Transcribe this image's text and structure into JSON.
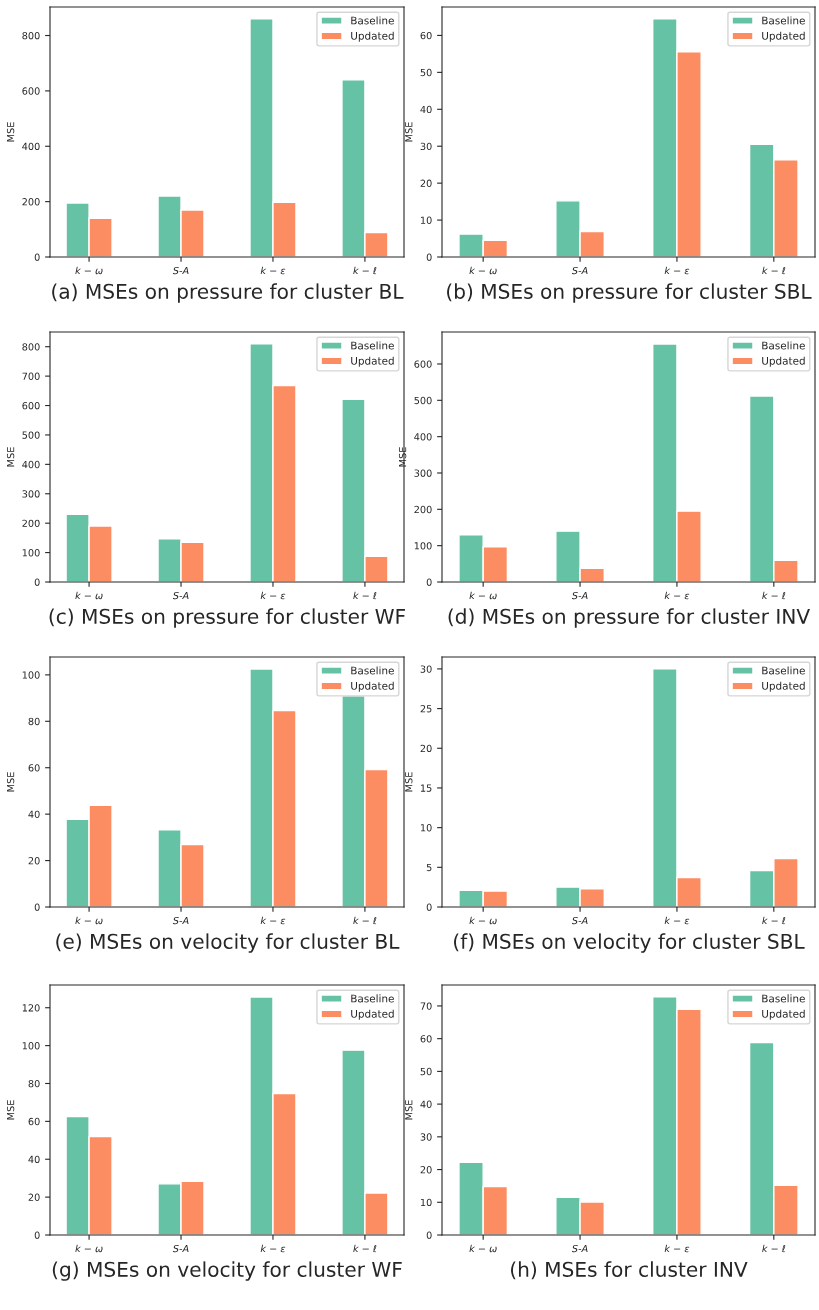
{
  "chart_data": [
    {
      "type": "bar",
      "title": "(a) MSEs on pressure for cluster BL",
      "ylabel": "MSE",
      "categories": [
        "k − ω",
        "S-A",
        "k − ε",
        "k − ℓ"
      ],
      "ylim": [
        0,
        903
      ],
      "yticks": [
        0,
        200,
        400,
        600,
        800
      ],
      "legend": "top right",
      "series": [
        {
          "name": "Baseline",
          "color": "#66c2a5",
          "values": [
            195,
            220,
            860,
            640
          ]
        },
        {
          "name": "Updated",
          "color": "#fc8d62",
          "values": [
            140,
            170,
            198,
            88
          ]
        }
      ]
    },
    {
      "type": "bar",
      "title": "(b) MSEs on pressure for cluster SBL",
      "ylabel": "MSE",
      "categories": [
        "k − ω",
        "S-A",
        "k − ε",
        "k − ℓ"
      ],
      "ylim": [
        0,
        67.7
      ],
      "yticks": [
        0,
        10,
        20,
        30,
        40,
        50,
        60
      ],
      "legend": "top right",
      "series": [
        {
          "name": "Baseline",
          "color": "#66c2a5",
          "values": [
            6.2,
            15.2,
            64.5,
            30.5
          ]
        },
        {
          "name": "Updated",
          "color": "#fc8d62",
          "values": [
            4.5,
            6.9,
            55.6,
            26.3
          ]
        }
      ]
    },
    {
      "type": "bar",
      "title": "(c) MSEs on pressure for cluster WF",
      "ylabel": "MSE",
      "categories": [
        "k − ω",
        "S-A",
        "k − ε",
        "k − ℓ"
      ],
      "ylim": [
        0,
        850
      ],
      "yticks": [
        0,
        100,
        200,
        300,
        400,
        500,
        600,
        700,
        800
      ],
      "legend": "top right",
      "series": [
        {
          "name": "Baseline",
          "color": "#66c2a5",
          "values": [
            230,
            147,
            810,
            621
          ]
        },
        {
          "name": "Updated",
          "color": "#fc8d62",
          "values": [
            190,
            135,
            668,
            87
          ]
        }
      ]
    },
    {
      "type": "bar",
      "title": "(d) MSEs on pressure for cluster INV",
      "ylabel": "MSE",
      "categories": [
        "k − ω",
        "S-A",
        "k − ε",
        "k − ℓ"
      ],
      "ylim": [
        0,
        688
      ],
      "yticks": [
        0,
        100,
        200,
        300,
        400,
        500,
        600
      ],
      "legend": "top right",
      "series": [
        {
          "name": "Baseline",
          "color": "#66c2a5",
          "values": [
            130,
            140,
            655,
            512
          ]
        },
        {
          "name": "Updated",
          "color": "#fc8d62",
          "values": [
            97,
            38,
            195,
            60
          ]
        }
      ]
    },
    {
      "type": "bar",
      "title": "(e) MSEs on velocity for cluster BL",
      "ylabel": "MSE",
      "categories": [
        "k − ω",
        "S-A",
        "k − ε",
        "k − ℓ"
      ],
      "ylim": [
        0,
        107.7
      ],
      "yticks": [
        0,
        20,
        40,
        60,
        80,
        100
      ],
      "legend": "top right",
      "series": [
        {
          "name": "Baseline",
          "color": "#66c2a5",
          "values": [
            37.8,
            33.3,
            102.5,
            91
          ]
        },
        {
          "name": "Updated",
          "color": "#fc8d62",
          "values": [
            43.8,
            26.9,
            84.6,
            59.2
          ]
        }
      ]
    },
    {
      "type": "bar",
      "title": "(f) MSEs on velocity for cluster SBL",
      "ylabel": "MSE",
      "categories": [
        "k − ω",
        "S-A",
        "k − ε",
        "k − ℓ"
      ],
      "ylim": [
        0,
        31.5
      ],
      "yticks": [
        0,
        5,
        10,
        15,
        20,
        25,
        30
      ],
      "legend": "top right",
      "series": [
        {
          "name": "Baseline",
          "color": "#66c2a5",
          "values": [
            2.1,
            2.5,
            30.0,
            4.6
          ]
        },
        {
          "name": "Updated",
          "color": "#fc8d62",
          "values": [
            2.0,
            2.3,
            3.7,
            6.1
          ]
        }
      ]
    },
    {
      "type": "bar",
      "title": "(g) MSEs on velocity for cluster WF",
      "ylabel": "MSE",
      "categories": [
        "k − ω",
        "S-A",
        "k − ε",
        "k − ℓ"
      ],
      "ylim": [
        0,
        132
      ],
      "yticks": [
        0,
        20,
        40,
        60,
        80,
        100,
        120
      ],
      "legend": "top right",
      "series": [
        {
          "name": "Baseline",
          "color": "#66c2a5",
          "values": [
            62.6,
            27,
            125.7,
            97.6
          ]
        },
        {
          "name": "Updated",
          "color": "#fc8d62",
          "values": [
            52,
            28.3,
            74.7,
            22.2
          ]
        }
      ]
    },
    {
      "type": "bar",
      "title": "(h) MSEs for cluster INV",
      "ylabel": "MSE",
      "categories": [
        "k − ω",
        "S-A",
        "k − ε",
        "k − ℓ"
      ],
      "ylim": [
        0,
        76.4
      ],
      "yticks": [
        0,
        10,
        20,
        30,
        40,
        50,
        60,
        70
      ],
      "legend": "top right",
      "series": [
        {
          "name": "Baseline",
          "color": "#66c2a5",
          "values": [
            22.2,
            11.5,
            72.8,
            58.8
          ]
        },
        {
          "name": "Updated",
          "color": "#fc8d62",
          "values": [
            14.8,
            10.1,
            69,
            15.2
          ]
        }
      ]
    }
  ]
}
